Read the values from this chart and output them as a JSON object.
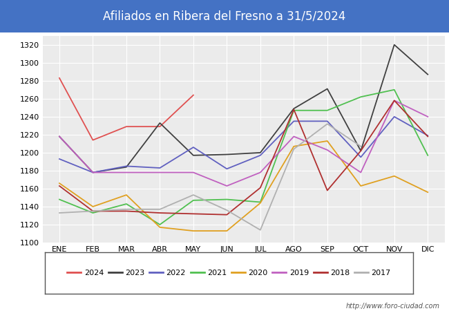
{
  "title": "Afiliados en Ribera del Fresno a 31/5/2024",
  "title_bg_color": "#4472c4",
  "title_text_color": "white",
  "ylim": [
    1100,
    1330
  ],
  "yticks": [
    1100,
    1120,
    1140,
    1160,
    1180,
    1200,
    1220,
    1240,
    1260,
    1280,
    1300,
    1320
  ],
  "months": [
    "ENE",
    "FEB",
    "MAR",
    "ABR",
    "MAY",
    "JUN",
    "JUL",
    "AGO",
    "SEP",
    "OCT",
    "NOV",
    "DIC"
  ],
  "footnote": "http://www.foro-ciudad.com",
  "series": {
    "2024": {
      "color": "#e05050",
      "data": [
        1283,
        1214,
        1229,
        1229,
        1264,
        null,
        null,
        null,
        null,
        null,
        null,
        null
      ]
    },
    "2023": {
      "color": "#404040",
      "data": [
        1218,
        1178,
        1184,
        1233,
        1197,
        1198,
        1200,
        1249,
        1271,
        1202,
        1320,
        1287
      ]
    },
    "2022": {
      "color": "#6060c0",
      "data": [
        1193,
        1178,
        1185,
        1183,
        1206,
        1182,
        1197,
        1235,
        1235,
        1195,
        1240,
        1219
      ]
    },
    "2021": {
      "color": "#50c050",
      "data": [
        1148,
        1133,
        1143,
        1120,
        1147,
        1148,
        1145,
        1247,
        1247,
        1262,
        1270,
        1197
      ]
    },
    "2020": {
      "color": "#e0a020",
      "data": [
        1166,
        1140,
        1153,
        1117,
        1113,
        1113,
        1144,
        1207,
        1213,
        1163,
        1174,
        1156
      ]
    },
    "2019": {
      "color": "#c060c0",
      "data": [
        1218,
        1178,
        1178,
        1178,
        1178,
        1163,
        1178,
        1218,
        1203,
        1178,
        1258,
        1240
      ]
    },
    "2018": {
      "color": "#b03030",
      "data": [
        1163,
        1135,
        1135,
        1133,
        1132,
        1131,
        1161,
        1248,
        1158,
        1202,
        1258,
        1218
      ]
    },
    "2017": {
      "color": "#b0b0b0",
      "data": [
        1133,
        1135,
        1137,
        1137,
        1153,
        1136,
        1114,
        1204,
        1232,
        1207,
        null,
        null
      ]
    }
  },
  "series_order": [
    "2024",
    "2023",
    "2022",
    "2021",
    "2020",
    "2019",
    "2018",
    "2017"
  ]
}
